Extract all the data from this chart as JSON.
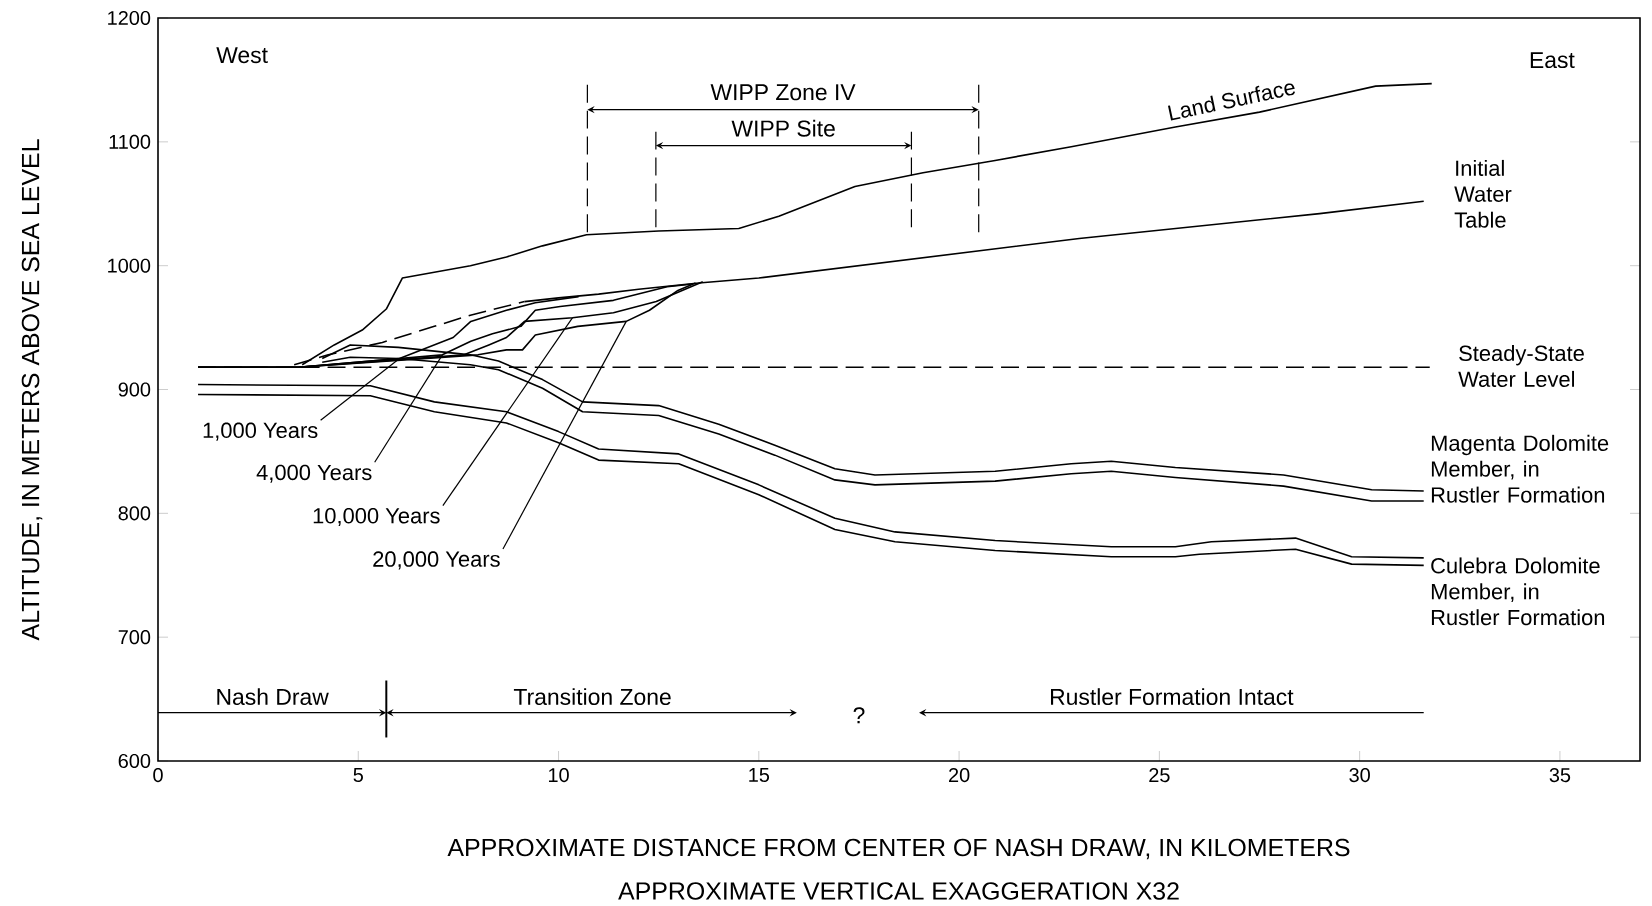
{
  "chart_data": {
    "type": "line",
    "xlabel": "APPROXIMATE DISTANCE FROM CENTER OF NASH DRAW, IN KILOMETERS",
    "ylabel": "ALTITUDE, IN METERS ABOVE SEA LEVEL",
    "xlim": [
      0,
      37
    ],
    "ylim": [
      600,
      1200
    ],
    "xticks": [
      0,
      5,
      10,
      15,
      20,
      25,
      30,
      35
    ],
    "yticks": [
      600,
      700,
      800,
      900,
      1000,
      1100,
      1200
    ],
    "grid": false,
    "series": [
      {
        "name": "Land Surface",
        "color": "#000000",
        "x": [
          3.6,
          4.4,
          5.1,
          5.7,
          6.1,
          7.8,
          8.7,
          9.6,
          10.7,
          12.5,
          14.5,
          15.5,
          17.4,
          19.1,
          20.9,
          22.8,
          25.4,
          27.5,
          30.4,
          31.8
        ],
        "values": [
          920,
          936,
          948,
          965,
          990,
          1000,
          1007,
          1016,
          1025,
          1028,
          1030,
          1040,
          1064,
          1075,
          1085,
          1096,
          1112,
          1124,
          1145,
          1147
        ]
      },
      {
        "name": "Initial Water Table",
        "color": "#000000",
        "x": [
          9.15,
          10,
          11,
          12,
          13.5,
          15,
          17,
          20,
          23,
          26,
          29,
          31.6
        ],
        "values": [
          971,
          974,
          977,
          981,
          986,
          990,
          998,
          1010,
          1022,
          1032,
          1042,
          1052
        ]
      },
      {
        "color": "#000000",
        "line_style": "dashed",
        "x": [
          3.4,
          4.25,
          5.6,
          6.9,
          7.8,
          9.15
        ],
        "values": [
          920,
          928,
          938,
          951,
          960,
          971
        ]
      },
      {
        "name": "Steady-State Water Level",
        "color": "#000000",
        "line_style": "dashed",
        "x": [
          1,
          31.75
        ],
        "values": [
          918,
          918
        ]
      },
      {
        "name": "1,000 Years",
        "color": "#000000",
        "x": [
          1,
          3.5,
          6.03,
          7.37,
          7.81,
          8.7,
          9.42,
          10.5
        ],
        "values": [
          918,
          918,
          925,
          942,
          955,
          964,
          970,
          975
        ]
      },
      {
        "name": "4,000 Years",
        "color": "#000000",
        "x": [
          1,
          3.5,
          7.1,
          7.81,
          8.35,
          9.06,
          9.42,
          10.04,
          11.37,
          12.71,
          13.3
        ],
        "values": [
          918,
          918,
          928,
          939,
          945,
          951,
          964,
          967,
          972,
          983,
          985
        ]
      },
      {
        "name": "10,000 Years",
        "color": "#000000",
        "x": [
          1,
          3.5,
          7.64,
          8.26,
          8.7,
          9.15,
          10.35,
          11.37,
          12.44,
          13.16,
          13.6
        ],
        "values": [
          918,
          918,
          928,
          936,
          942,
          955,
          958,
          962,
          971,
          981,
          987
        ]
      },
      {
        "name": "20,000 Years",
        "color": "#000000",
        "x": [
          1,
          3.5,
          7.99,
          8.7,
          9.1,
          9.42,
          10.48,
          11.69,
          12.27,
          12.98,
          13.42
        ],
        "values": [
          918,
          918,
          928,
          932,
          932,
          944,
          951,
          955,
          964,
          980,
          986
        ]
      },
      {
        "name": "Magenta Dolomite Member, in Rustler Formation",
        "color": "#000000",
        "x": [
          4.1,
          4.8,
          6.0,
          7.8,
          8.5,
          9.6,
          10.6,
          12.5,
          14.0,
          15.4,
          16.9,
          17.9,
          20.9,
          22.8,
          23.8,
          25.4,
          28.1,
          30.3,
          31.6
        ],
        "values": [
          925,
          936,
          934,
          928,
          923,
          908,
          890,
          887,
          872,
          855,
          836,
          831,
          834,
          840,
          842,
          837,
          831,
          819,
          818
        ]
      },
      {
        "color": "#000000",
        "x": [
          4.1,
          4.8,
          6.0,
          7.8,
          8.5,
          9.6,
          10.6,
          12.5,
          14.0,
          15.4,
          16.9,
          17.9,
          20.9,
          22.8,
          23.8,
          25.4,
          28.1,
          30.3,
          31.6
        ],
        "values": [
          922,
          926,
          925,
          920,
          916,
          901,
          882,
          879,
          864,
          847,
          827,
          823,
          826,
          832,
          834,
          829,
          822,
          810,
          810
        ]
      },
      {
        "name": "Culebra Dolomite Member, in Rustler Formation",
        "color": "#000000",
        "x": [
          1.0,
          5.3,
          6.9,
          8.7,
          10.0,
          11.0,
          13.0,
          15.0,
          16.9,
          18.4,
          20.9,
          23.8,
          25.4,
          26.3,
          28.4,
          29.8,
          31.6
        ],
        "values": [
          904,
          903,
          890,
          882,
          866,
          852,
          848,
          823,
          796,
          785,
          778,
          773,
          773,
          777,
          780,
          765,
          764
        ]
      },
      {
        "color": "#000000",
        "x": [
          1.0,
          5.3,
          6.9,
          8.7,
          10.0,
          11.0,
          13.0,
          15.0,
          16.9,
          18.4,
          20.9,
          23.8,
          25.4,
          26.0,
          28.4,
          29.8,
          31.6
        ],
        "values": [
          896,
          895,
          882,
          873,
          857,
          843,
          840,
          815,
          787,
          777,
          770,
          765,
          765,
          767,
          771,
          759,
          758
        ]
      }
    ],
    "ref_lines": [
      {
        "axis": "x",
        "value": 10.72,
        "line_style": "dashed"
      },
      {
        "axis": "x",
        "value": 20.49,
        "line_style": "dashed"
      },
      {
        "axis": "x",
        "value": 12.43,
        "line_style": "dashed"
      },
      {
        "axis": "x",
        "value": 18.81,
        "line_style": "dashed"
      }
    ],
    "annotations": [
      "West",
      "East",
      "WIPP Zone IV",
      "WIPP Site",
      "Nash Draw",
      "Transition Zone",
      "?",
      "Rustler Formation Intact",
      "APPROXIMATE VERTICAL EXAGGERATION X32"
    ]
  }
}
